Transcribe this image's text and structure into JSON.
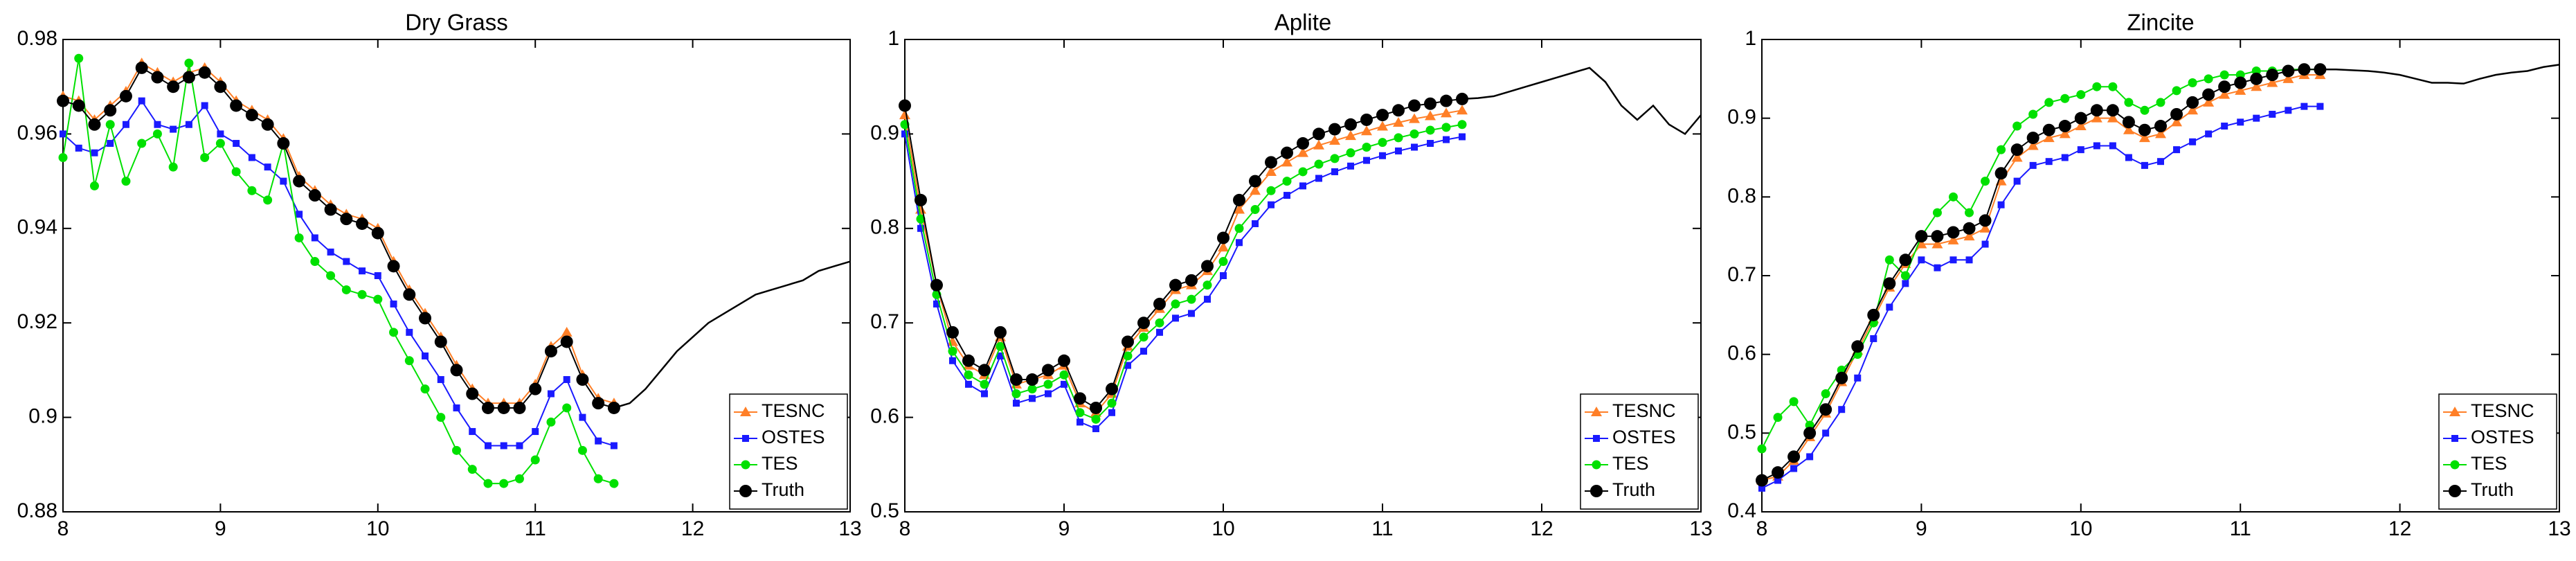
{
  "chart_data": [
    {
      "type": "line",
      "title": "Dry Grass",
      "legend": "lower right",
      "xlim": [
        8,
        13
      ],
      "ylim": [
        0.88,
        0.98
      ],
      "xticks": [
        8,
        9,
        10,
        11,
        12,
        13
      ],
      "yticks": [
        0.88,
        0.9,
        0.92,
        0.94,
        0.96,
        0.98
      ],
      "x": [
        8,
        8.1,
        8.2,
        8.3,
        8.4,
        8.5,
        8.6,
        8.7,
        8.8,
        8.9,
        9,
        9.1,
        9.2,
        9.3,
        9.4,
        9.5,
        9.6,
        9.7,
        9.8,
        9.9,
        10,
        10.1,
        10.2,
        10.3,
        10.4,
        10.5,
        10.6,
        10.7,
        10.8,
        10.9,
        11,
        11.1,
        11.2,
        11.3,
        11.4,
        11.5
      ],
      "series": [
        {
          "name": "TESNC",
          "color": "#ff7f27",
          "marker": "triangle",
          "values": [
            0.968,
            0.967,
            0.963,
            0.966,
            0.969,
            0.975,
            0.973,
            0.971,
            0.973,
            0.974,
            0.971,
            0.967,
            0.965,
            0.963,
            0.959,
            0.951,
            0.948,
            0.945,
            0.943,
            0.942,
            0.94,
            0.933,
            0.927,
            0.922,
            0.917,
            0.911,
            0.906,
            0.903,
            0.903,
            0.903,
            0.907,
            0.915,
            0.918,
            0.909,
            0.904,
            0.903
          ]
        },
        {
          "name": "OSTES",
          "color": "#1a1aff",
          "marker": "square",
          "values": [
            0.96,
            0.957,
            0.956,
            0.958,
            0.962,
            0.967,
            0.962,
            0.961,
            0.962,
            0.966,
            0.96,
            0.958,
            0.955,
            0.953,
            0.95,
            0.943,
            0.938,
            0.935,
            0.933,
            0.931,
            0.93,
            0.924,
            0.918,
            0.913,
            0.908,
            0.902,
            0.897,
            0.894,
            0.894,
            0.894,
            0.897,
            0.905,
            0.908,
            0.9,
            0.895,
            0.894
          ]
        },
        {
          "name": "TES",
          "color": "#00e000",
          "marker": "circle",
          "values": [
            0.955,
            0.976,
            0.949,
            0.962,
            0.95,
            0.958,
            0.96,
            0.953,
            0.975,
            0.955,
            0.958,
            0.952,
            0.948,
            0.946,
            0.958,
            0.938,
            0.933,
            0.93,
            0.927,
            0.926,
            0.925,
            0.918,
            0.912,
            0.906,
            0.9,
            0.893,
            0.889,
            0.886,
            0.886,
            0.887,
            0.891,
            0.899,
            0.902,
            0.893,
            0.887,
            0.886
          ]
        },
        {
          "name": "Truth",
          "color": "#000000",
          "marker": "dot",
          "values": [
            0.967,
            0.966,
            0.962,
            0.965,
            0.968,
            0.974,
            0.972,
            0.97,
            0.972,
            0.973,
            0.97,
            0.966,
            0.964,
            0.962,
            0.958,
            0.95,
            0.947,
            0.944,
            0.942,
            0.941,
            0.939,
            0.932,
            0.926,
            0.921,
            0.916,
            0.91,
            0.905,
            0.902,
            0.902,
            0.902,
            0.906,
            0.914,
            0.916,
            0.908,
            0.903,
            0.902
          ]
        }
      ],
      "reference_curve": {
        "color": "#000000",
        "x": [
          11.5,
          11.6,
          11.7,
          11.8,
          11.9,
          12,
          12.1,
          12.2,
          12.3,
          12.4,
          12.5,
          12.6,
          12.7,
          12.8,
          12.9,
          13
        ],
        "values": [
          0.902,
          0.903,
          0.906,
          0.91,
          0.914,
          0.917,
          0.92,
          0.922,
          0.924,
          0.926,
          0.927,
          0.928,
          0.929,
          0.931,
          0.932,
          0.933
        ]
      }
    },
    {
      "type": "line",
      "title": "Aplite",
      "legend": "lower right",
      "xlim": [
        8,
        13
      ],
      "ylim": [
        0.5,
        1
      ],
      "xticks": [
        8,
        9,
        10,
        11,
        12,
        13
      ],
      "yticks": [
        0.5,
        0.6,
        0.7,
        0.8,
        0.9,
        1
      ],
      "x": [
        8,
        8.1,
        8.2,
        8.3,
        8.4,
        8.5,
        8.6,
        8.7,
        8.8,
        8.9,
        9,
        9.1,
        9.2,
        9.3,
        9.4,
        9.5,
        9.6,
        9.7,
        9.8,
        9.9,
        10,
        10.1,
        10.2,
        10.3,
        10.4,
        10.5,
        10.6,
        10.7,
        10.8,
        10.9,
        11,
        11.1,
        11.2,
        11.3,
        11.4,
        11.5
      ],
      "series": [
        {
          "name": "TESNC",
          "color": "#ff7f27",
          "marker": "triangle",
          "values": [
            0.92,
            0.82,
            0.74,
            0.68,
            0.655,
            0.645,
            0.685,
            0.635,
            0.64,
            0.645,
            0.655,
            0.615,
            0.605,
            0.625,
            0.675,
            0.695,
            0.715,
            0.735,
            0.74,
            0.755,
            0.78,
            0.82,
            0.84,
            0.86,
            0.87,
            0.88,
            0.888,
            0.893,
            0.898,
            0.903,
            0.908,
            0.912,
            0.916,
            0.919,
            0.922,
            0.925
          ]
        },
        {
          "name": "OSTES",
          "color": "#1a1aff",
          "marker": "square",
          "values": [
            0.9,
            0.8,
            0.72,
            0.66,
            0.635,
            0.625,
            0.665,
            0.615,
            0.62,
            0.625,
            0.635,
            0.595,
            0.588,
            0.605,
            0.655,
            0.67,
            0.69,
            0.705,
            0.71,
            0.725,
            0.75,
            0.785,
            0.805,
            0.825,
            0.835,
            0.845,
            0.853,
            0.86,
            0.866,
            0.872,
            0.877,
            0.882,
            0.886,
            0.89,
            0.894,
            0.897
          ]
        },
        {
          "name": "TES",
          "color": "#00e000",
          "marker": "circle",
          "values": [
            0.91,
            0.81,
            0.73,
            0.67,
            0.645,
            0.635,
            0.675,
            0.625,
            0.63,
            0.635,
            0.645,
            0.605,
            0.598,
            0.615,
            0.665,
            0.685,
            0.7,
            0.72,
            0.725,
            0.74,
            0.765,
            0.8,
            0.82,
            0.84,
            0.85,
            0.86,
            0.868,
            0.874,
            0.88,
            0.886,
            0.891,
            0.896,
            0.9,
            0.904,
            0.907,
            0.91
          ]
        },
        {
          "name": "Truth",
          "color": "#000000",
          "marker": "dot",
          "values": [
            0.93,
            0.83,
            0.74,
            0.69,
            0.66,
            0.65,
            0.69,
            0.64,
            0.64,
            0.65,
            0.66,
            0.62,
            0.61,
            0.63,
            0.68,
            0.7,
            0.72,
            0.74,
            0.745,
            0.76,
            0.79,
            0.83,
            0.85,
            0.87,
            0.88,
            0.89,
            0.9,
            0.905,
            0.91,
            0.915,
            0.92,
            0.925,
            0.93,
            0.932,
            0.935,
            0.937
          ]
        }
      ],
      "reference_curve": {
        "color": "#000000",
        "x": [
          11.5,
          11.6,
          11.7,
          11.8,
          11.9,
          12,
          12.1,
          12.2,
          12.3,
          12.4,
          12.5,
          12.6,
          12.7,
          12.8,
          12.9,
          13
        ],
        "values": [
          0.937,
          0.938,
          0.94,
          0.945,
          0.95,
          0.955,
          0.96,
          0.965,
          0.97,
          0.955,
          0.93,
          0.915,
          0.93,
          0.91,
          0.9,
          0.92
        ]
      }
    },
    {
      "type": "line",
      "title": "Zincite",
      "legend": "lower right",
      "xlim": [
        8,
        13
      ],
      "ylim": [
        0.4,
        1
      ],
      "xticks": [
        8,
        9,
        10,
        11,
        12,
        13
      ],
      "yticks": [
        0.4,
        0.5,
        0.6,
        0.7,
        0.8,
        0.9,
        1
      ],
      "x": [
        8,
        8.1,
        8.2,
        8.3,
        8.4,
        8.5,
        8.6,
        8.7,
        8.8,
        8.9,
        9,
        9.1,
        9.2,
        9.3,
        9.4,
        9.5,
        9.6,
        9.7,
        9.8,
        9.9,
        10,
        10.1,
        10.2,
        10.3,
        10.4,
        10.5,
        10.6,
        10.7,
        10.8,
        10.9,
        11,
        11.1,
        11.2,
        11.3,
        11.4,
        11.5
      ],
      "series": [
        {
          "name": "TESNC",
          "color": "#ff7f27",
          "marker": "triangle",
          "values": [
            0.44,
            0.445,
            0.465,
            0.495,
            0.525,
            0.565,
            0.605,
            0.645,
            0.685,
            0.715,
            0.74,
            0.74,
            0.745,
            0.75,
            0.76,
            0.82,
            0.85,
            0.865,
            0.875,
            0.88,
            0.89,
            0.9,
            0.9,
            0.885,
            0.875,
            0.88,
            0.895,
            0.91,
            0.92,
            0.93,
            0.935,
            0.94,
            0.945,
            0.95,
            0.955,
            0.955
          ]
        },
        {
          "name": "OSTES",
          "color": "#1a1aff",
          "marker": "square",
          "values": [
            0.43,
            0.44,
            0.455,
            0.47,
            0.5,
            0.53,
            0.57,
            0.62,
            0.66,
            0.69,
            0.72,
            0.71,
            0.72,
            0.72,
            0.74,
            0.79,
            0.82,
            0.84,
            0.845,
            0.85,
            0.86,
            0.865,
            0.865,
            0.85,
            0.84,
            0.845,
            0.86,
            0.87,
            0.88,
            0.89,
            0.895,
            0.9,
            0.905,
            0.91,
            0.915,
            0.915
          ]
        },
        {
          "name": "TES",
          "color": "#00e000",
          "marker": "circle",
          "values": [
            0.48,
            0.52,
            0.54,
            0.51,
            0.55,
            0.58,
            0.6,
            0.64,
            0.72,
            0.7,
            0.75,
            0.78,
            0.8,
            0.78,
            0.82,
            0.86,
            0.89,
            0.905,
            0.92,
            0.925,
            0.93,
            0.94,
            0.94,
            0.92,
            0.91,
            0.92,
            0.935,
            0.945,
            0.95,
            0.955,
            0.955,
            0.96,
            0.96,
            0.962,
            0.962,
            0.962
          ]
        },
        {
          "name": "Truth",
          "color": "#000000",
          "marker": "dot",
          "values": [
            0.44,
            0.45,
            0.47,
            0.5,
            0.53,
            0.57,
            0.61,
            0.65,
            0.69,
            0.72,
            0.75,
            0.75,
            0.755,
            0.76,
            0.77,
            0.83,
            0.86,
            0.875,
            0.885,
            0.89,
            0.9,
            0.91,
            0.91,
            0.895,
            0.885,
            0.89,
            0.905,
            0.92,
            0.93,
            0.94,
            0.945,
            0.95,
            0.955,
            0.96,
            0.962,
            0.962
          ]
        }
      ],
      "reference_curve": {
        "color": "#000000",
        "x": [
          11.5,
          11.6,
          11.7,
          11.8,
          11.9,
          12,
          12.1,
          12.2,
          12.3,
          12.4,
          12.5,
          12.6,
          12.7,
          12.8,
          12.9,
          13
        ],
        "values": [
          0.962,
          0.962,
          0.961,
          0.96,
          0.958,
          0.955,
          0.95,
          0.945,
          0.945,
          0.944,
          0.95,
          0.955,
          0.958,
          0.96,
          0.965,
          0.968
        ]
      }
    }
  ]
}
